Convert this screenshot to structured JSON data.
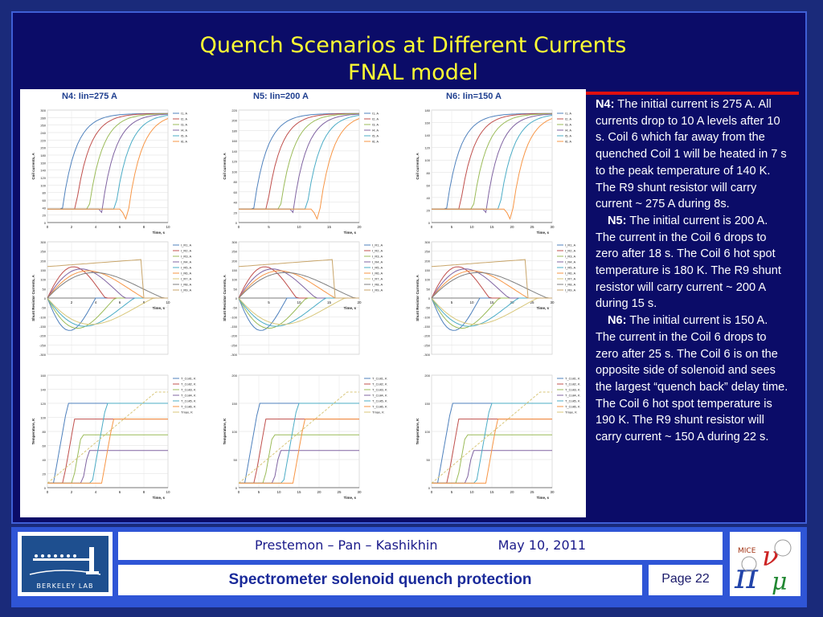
{
  "title": {
    "line1": "Quench Scenarios at Different Currents",
    "line2": "FNAL model"
  },
  "figure": {
    "panels": [
      {
        "heading": "N4: Iin=275 A",
        "current_chart": {
          "ylabel": "Coil currents, A",
          "xlabel": "Time, s",
          "yticks": [
            "0",
            "20",
            "40",
            "60",
            "80",
            "100",
            "120",
            "140",
            "160",
            "180",
            "200",
            "220",
            "240",
            "260",
            "280",
            "300"
          ],
          "xticks": [
            "0",
            "2",
            "4",
            "6",
            "8",
            "10"
          ],
          "legend": [
            "I1, A",
            "I2, A",
            "I3, A",
            "I4, A",
            "I5, A",
            "I6, A"
          ]
        },
        "shunt_chart": {
          "ylabel": "Shunt Resistor Currents, A",
          "xlabel": "Time, s",
          "yticks": [
            "300",
            "250",
            "200",
            "150",
            "100",
            "50",
            "0",
            "-50",
            "-100",
            "-150",
            "-200",
            "-250",
            "-300"
          ],
          "xticks": [
            "2",
            "4",
            "6",
            "8",
            "10"
          ],
          "legend": [
            "I_R1, A",
            "I_R2, A",
            "I_R3, A",
            "I_R4, A",
            "I_R5, A",
            "I_R6, A",
            "I_R7, A",
            "I_R8, A",
            "I_R9, A"
          ]
        },
        "temp_chart": {
          "ylabel": "Temperature, K",
          "xlabel": "Time, s",
          "yticks": [
            "0",
            "20",
            "40",
            "60",
            "80",
            "100",
            "120",
            "140",
            "160"
          ],
          "xticks": [
            "0",
            "2",
            "4",
            "6",
            "8",
            "10"
          ],
          "legend": [
            "T_Coil1, K",
            "T_Coil2, K",
            "T_Coil3, K",
            "T_Coil4, K",
            "T_Coil5, K",
            "T_Coil6, K",
            "Tmax, K"
          ]
        }
      },
      {
        "heading": "N5: Iin=200 A",
        "current_chart": {
          "ylabel": "Coil currents, A",
          "xlabel": "Time, s",
          "yticks": [
            "0",
            "20",
            "40",
            "60",
            "80",
            "100",
            "120",
            "140",
            "160",
            "180",
            "200",
            "220"
          ],
          "xticks": [
            "0",
            "5",
            "10",
            "15",
            "20"
          ],
          "legend": [
            "I1, A",
            "I2, A",
            "I3, A",
            "I4, A",
            "I5, A",
            "I6, A"
          ]
        },
        "shunt_chart": {
          "ylabel": "Shunt Resistor Currents, A",
          "xlabel": "Time, s",
          "yticks": [
            "300",
            "250",
            "200",
            "150",
            "100",
            "50",
            "0",
            "-50",
            "-100",
            "-150",
            "-200",
            "-250",
            "-300"
          ],
          "xticks": [
            "5",
            "10",
            "15",
            "20"
          ],
          "legend": [
            "I_R1, A",
            "I_R2, A",
            "I_R3, A",
            "I_R4, A",
            "I_R5, A",
            "I_R6, A",
            "I_R7, A",
            "I_R8, A",
            "I_R9, A"
          ]
        },
        "temp_chart": {
          "ylabel": "Temperature, K",
          "xlabel": "Time, s",
          "yticks": [
            "0",
            "50",
            "100",
            "150",
            "200"
          ],
          "xticks": [
            "0",
            "5",
            "10",
            "15",
            "20",
            "25",
            "30"
          ],
          "legend": [
            "T_Coil1, K",
            "T_Coil2, K",
            "T_Coil3, K",
            "T_Coil4, K",
            "T_Coil5, K",
            "T_Coil6, K",
            "Tmax, K"
          ]
        }
      },
      {
        "heading": "N6: Iin=150 A",
        "current_chart": {
          "ylabel": "Coil currents, A",
          "xlabel": "Time, s",
          "yticks": [
            "0",
            "20",
            "40",
            "60",
            "80",
            "100",
            "120",
            "140",
            "160",
            "180"
          ],
          "xticks": [
            "0",
            "5",
            "10",
            "15",
            "20",
            "25",
            "30"
          ],
          "legend": [
            "I1, A",
            "I2, A",
            "I3, A",
            "I4, A",
            "I5, A",
            "I6, A"
          ]
        },
        "shunt_chart": {
          "ylabel": "Shunt Resistor Currents, A",
          "xlabel": "Time, s",
          "yticks": [
            "300",
            "250",
            "200",
            "150",
            "100",
            "50",
            "0",
            "-50",
            "-100",
            "-150",
            "-200",
            "-250",
            "-300"
          ],
          "xticks": [
            "5",
            "10",
            "15",
            "20",
            "25",
            "30"
          ],
          "legend": [
            "I_R1, A",
            "I_R2, A",
            "I_R3, A",
            "I_R4, A",
            "I_R5, A",
            "I_R6, A",
            "I_R7, A",
            "I_R8, A",
            "I_R9, A"
          ]
        },
        "temp_chart": {
          "ylabel": "Temperature, K",
          "xlabel": "Time, s",
          "yticks": [
            "0",
            "50",
            "100",
            "150",
            "200"
          ],
          "xticks": [
            "0",
            "5",
            "10",
            "15",
            "20",
            "25",
            "30"
          ],
          "legend": [
            "T_Coil1, K",
            "T_Coil2, K",
            "T_Coil3, K",
            "T_Coil4, K",
            "T_Coil5, K",
            "T_Coil6, K",
            "Tmax, K"
          ]
        }
      }
    ]
  },
  "notes": {
    "n4_label": "N4:",
    "n4_text": " The initial current is 275 A. All currents drop to 10 A levels after 10 s. Coil 6  which far away from the quenched Coil 1 will be heated in 7 s to the peak temperature of 140 K. The R9 shunt resistor will carry current ~ 275 A during 8s.",
    "n5_label": "N5:",
    "n5_text": " The initial current is 200 A. The current in the Coil 6 drops to zero after    18 s. The Coil 6 hot spot temperature is 180 K. The R9 shunt resistor will carry current ~ 200 A during 15 s.",
    "n6_label": "N6:",
    "n6_text": " The initial current is 150 A. The current in the Coil 6 drops to zero after    25 s. The Coil 6 is on the opposite side of solenoid and sees the largest “quench back” delay time. The Coil 6 hot spot temperature is 190 K. The R9 shunt resistor will carry current ~ 150 A during 22 s."
  },
  "footer": {
    "logo_text": "BERKELEY LAB",
    "authors": "Prestemon – Pan – Kashikhin",
    "date": "May 10, 2011",
    "subtitle": "Spectrometer solenoid quench protection",
    "page": "Page 22",
    "mice_label": "MICE"
  },
  "colors": {
    "background": "#0b0c68",
    "title": "#ffff33",
    "accent_rule": "#e01010",
    "footer_band": "#2f55d6",
    "series": [
      "#4f81bd",
      "#c0504d",
      "#9bbb59",
      "#8064a2",
      "#4bacc6",
      "#f79646",
      "#d8c77a",
      "#7f7f7f",
      "#c9a66b"
    ]
  }
}
